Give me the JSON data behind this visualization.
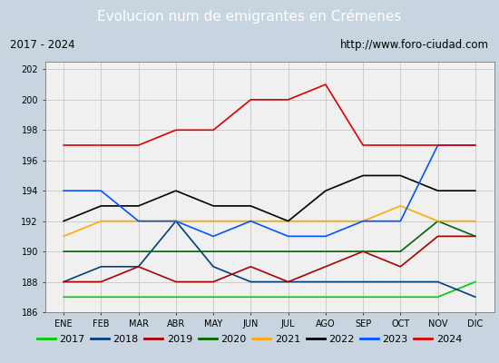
{
  "title": "Evolucion num de emigrantes en Crémenes",
  "subtitle_left": "2017 - 2024",
  "subtitle_right": "http://www.foro-ciudad.com",
  "title_bg_color": "#4d8fcc",
  "title_text_color": "white",
  "ylim": [
    186,
    202.5
  ],
  "yticks": [
    186,
    188,
    190,
    192,
    194,
    196,
    198,
    200,
    202
  ],
  "months": [
    "ENE",
    "FEB",
    "MAR",
    "ABR",
    "MAY",
    "JUN",
    "JUL",
    "AGO",
    "SEP",
    "OCT",
    "NOV",
    "DIC"
  ],
  "series": {
    "2017": {
      "color": "#00cc00",
      "data": [
        187,
        187,
        187,
        187,
        187,
        187,
        187,
        187,
        187,
        187,
        187,
        188
      ]
    },
    "2018": {
      "color": "#004080",
      "data": [
        188,
        189,
        189,
        192,
        189,
        188,
        188,
        188,
        188,
        188,
        188,
        187
      ]
    },
    "2019": {
      "color": "#aa0000",
      "data": [
        188,
        188,
        189,
        188,
        188,
        189,
        188,
        189,
        190,
        189,
        191,
        191
      ]
    },
    "2020": {
      "color": "#006600",
      "data": [
        190,
        190,
        190,
        190,
        190,
        190,
        190,
        190,
        190,
        190,
        192,
        191
      ]
    },
    "2021": {
      "color": "#ffaa00",
      "data": [
        191,
        192,
        192,
        192,
        192,
        192,
        192,
        192,
        192,
        193,
        192,
        192
      ]
    },
    "2022": {
      "color": "#000000",
      "data": [
        192,
        193,
        193,
        194,
        193,
        193,
        192,
        194,
        195,
        195,
        194,
        194
      ]
    },
    "2023": {
      "color": "#0055ff",
      "data": [
        194,
        194,
        192,
        192,
        191,
        192,
        191,
        191,
        192,
        192,
        197,
        197
      ]
    },
    "2024": {
      "color": "#dd0000",
      "data": [
        197,
        197,
        197,
        198,
        198,
        200,
        200,
        201,
        197,
        197,
        197,
        197
      ]
    }
  }
}
